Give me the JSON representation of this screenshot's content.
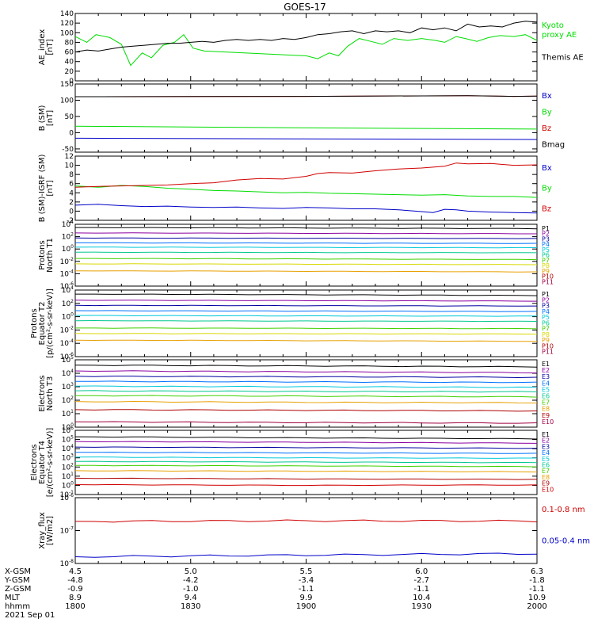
{
  "title": "GOES-17",
  "colors": {
    "black": "#000000",
    "green": "#00dd00",
    "blue": "#0000c8",
    "red": "#d00000",
    "purple": "#8a00a0",
    "navy": "#0000a0",
    "sky": "#0070ff",
    "cyan": "#00c8d8",
    "teal": "#00c890",
    "lime": "#40d000",
    "yellow": "#d8d800",
    "orange": "#e8a000",
    "darkred": "#b00000",
    "wine": "#a00040"
  },
  "chart_data": [
    {
      "type": "line",
      "panel": "ae",
      "ylabel": "AE_index\n[nT]",
      "ylim": [
        0,
        140
      ],
      "yticks": [
        "0",
        "20",
        "40",
        "60",
        "80",
        "100",
        "120",
        "140"
      ],
      "series": [
        {
          "name": "Kyoto\nproxy AE",
          "color": "green",
          "x": [
            1800,
            1805,
            1809,
            1815,
            1820,
            1824,
            1829,
            1833,
            1838,
            1843,
            1847,
            1851,
            1856,
            1900,
            1905,
            1910,
            1914,
            1918,
            1923,
            1928,
            1933,
            1938,
            1944,
            1950,
            1956,
            1960,
            1965,
            1969,
            1974,
            1979,
            1984,
            1990,
            1995,
            2000
          ],
          "values": [
            92,
            80,
            96,
            90,
            76,
            32,
            58,
            48,
            74,
            80,
            96,
            68,
            62,
            52,
            46,
            58,
            52,
            72,
            88,
            82,
            76,
            88,
            84,
            88,
            84,
            80,
            92,
            88,
            82,
            90,
            94,
            92,
            96,
            84
          ]
        },
        {
          "name": "Themis AE",
          "color": "black",
          "x": [
            1800,
            1805,
            1810,
            1815,
            1820,
            1825,
            1830,
            1835,
            1840,
            1845,
            1850,
            1855,
            1860,
            1865,
            1870,
            1875,
            1880,
            1885,
            1890,
            1895,
            1900,
            1905,
            1910,
            1915,
            1920,
            1925,
            1930,
            1935,
            1940,
            1945,
            1950,
            1955,
            1960,
            1965,
            1970,
            1975,
            1980,
            1985,
            1990,
            1995,
            2000
          ],
          "values": [
            60,
            64,
            62,
            66,
            70,
            72,
            74,
            76,
            78,
            78,
            80,
            82,
            80,
            84,
            86,
            84,
            86,
            84,
            88,
            86,
            90,
            96,
            98,
            102,
            104,
            98,
            104,
            102,
            104,
            100,
            110,
            106,
            110,
            104,
            118,
            112,
            114,
            112,
            120,
            124,
            122
          ]
        }
      ]
    },
    {
      "type": "line",
      "panel": "bsm",
      "ylabel": "B (SM)\n[nT]",
      "ylim": [
        -60,
        150
      ],
      "yticks": [
        "-50",
        "0",
        "50",
        "100",
        "150"
      ],
      "series": [
        {
          "name": "Bx",
          "color": "blue",
          "x": [
            1800,
            1900,
            2000
          ],
          "values": [
            -17,
            -19,
            -21
          ]
        },
        {
          "name": "By",
          "color": "green",
          "x": [
            1800,
            1900,
            2000
          ],
          "values": [
            20,
            15,
            11
          ]
        },
        {
          "name": "Bz",
          "color": "red",
          "x": [
            1800,
            1900,
            1970,
            1990,
            2000
          ],
          "values": [
            111,
            112,
            114,
            112,
            113
          ]
        },
        {
          "name": "Bmag",
          "color": "black",
          "x": [
            1800,
            1900,
            1970,
            1990,
            2000
          ],
          "values": [
            111,
            112,
            114,
            112,
            113
          ]
        }
      ]
    },
    {
      "type": "line",
      "panel": "bigrf",
      "ylabel": "B (SM)-IGRF (SM)\n[nT]",
      "ylim": [
        -2,
        12
      ],
      "yticks": [
        "-2",
        "0",
        "2",
        "4",
        "6",
        "8",
        "10",
        "12"
      ],
      "series": [
        {
          "name": "Bx",
          "color": "blue",
          "x": [
            1800,
            1810,
            1820,
            1830,
            1840,
            1850,
            1860,
            1870,
            1880,
            1890,
            1900,
            1910,
            1920,
            1930,
            1940,
            1950,
            1955,
            1960,
            1965,
            1970,
            1980,
            1990,
            2000
          ],
          "values": [
            1.3,
            1.5,
            1.2,
            1.0,
            1.1,
            0.9,
            0.8,
            0.9,
            0.7,
            0.6,
            0.8,
            0.7,
            0.5,
            0.5,
            0.3,
            -0.1,
            -0.3,
            0.4,
            0.3,
            0.0,
            -0.2,
            -0.3,
            -0.4
          ]
        },
        {
          "name": "By",
          "color": "green",
          "x": [
            1800,
            1810,
            1820,
            1830,
            1840,
            1850,
            1860,
            1870,
            1880,
            1890,
            1900,
            1910,
            1920,
            1930,
            1940,
            1950,
            1960,
            1970,
            1980,
            1990,
            2000
          ],
          "values": [
            5.5,
            5.2,
            5.6,
            5.4,
            5.0,
            4.8,
            4.5,
            4.4,
            4.2,
            4.0,
            4.1,
            3.9,
            3.8,
            3.7,
            3.6,
            3.5,
            3.6,
            3.3,
            3.2,
            3.2,
            3.0
          ]
        },
        {
          "name": "Bz",
          "color": "red",
          "x": [
            1800,
            1810,
            1820,
            1830,
            1840,
            1850,
            1860,
            1870,
            1880,
            1890,
            1900,
            1905,
            1910,
            1920,
            1930,
            1940,
            1950,
            1960,
            1965,
            1970,
            1980,
            1990,
            2000
          ],
          "values": [
            5.2,
            5.4,
            5.5,
            5.6,
            5.7,
            6.0,
            6.2,
            6.8,
            7.1,
            7.0,
            7.6,
            8.2,
            8.4,
            8.3,
            8.8,
            9.2,
            9.4,
            9.8,
            10.5,
            10.3,
            10.4,
            10.0,
            10.1
          ]
        }
      ]
    },
    {
      "type": "line",
      "panel": "p-north",
      "ylabel": "Protons\nNorth T1",
      "yscale": "log",
      "ylim": [
        1e-06,
        10000.0
      ],
      "yticks": [
        "10^-6",
        "10^-4",
        "10^-2",
        "10^0",
        "10^2",
        "10^4"
      ],
      "series": [
        {
          "name": "P1",
          "color": "black",
          "values": [
            3000,
            2500,
            2000
          ]
        },
        {
          "name": "P2",
          "color": "purple",
          "values": [
            400,
            350,
            300
          ]
        },
        {
          "name": "P3",
          "color": "navy",
          "values": [
            60,
            55,
            50
          ]
        },
        {
          "name": "P4",
          "color": "sky",
          "values": [
            10,
            9,
            8
          ]
        },
        {
          "name": "P5",
          "color": "cyan",
          "values": [
            2,
            1.8,
            1.6
          ]
        },
        {
          "name": "P6",
          "color": "teal",
          "values": [
            0.3,
            0.27,
            0.25
          ]
        },
        {
          "name": "P7",
          "color": "lime",
          "values": [
            0.03,
            0.025,
            0.02
          ]
        },
        {
          "name": "P8",
          "color": "yellow",
          "values": [
            0.004,
            0.0035,
            0.003
          ]
        },
        {
          "name": "P9",
          "color": "orange",
          "values": [
            0.0003,
            0.00025,
            0.0002
          ]
        },
        {
          "name": "P10",
          "color": "darkred",
          "values": []
        },
        {
          "name": "P11",
          "color": "wine",
          "values": []
        }
      ]
    },
    {
      "type": "line",
      "panel": "p-equator",
      "ylabel": "Protons\nEquator T2\n[p/(cm²-s-sr-keV)]",
      "yscale": "log",
      "ylim": [
        1e-06,
        10000.0
      ],
      "yticks": [
        "10^-6",
        "10^-4",
        "10^-2",
        "10^0",
        "10^2",
        "10^4"
      ],
      "series": [
        {
          "name": "P1",
          "color": "black",
          "values": [
            2500,
            2000,
            1500
          ]
        },
        {
          "name": "P2",
          "color": "purple",
          "values": [
            300,
            260,
            220
          ]
        },
        {
          "name": "P3",
          "color": "navy",
          "values": [
            50,
            45,
            40
          ]
        },
        {
          "name": "P4",
          "color": "sky",
          "values": [
            8,
            7,
            6
          ]
        },
        {
          "name": "P5",
          "color": "cyan",
          "values": [
            1.5,
            1.3,
            1.2
          ]
        },
        {
          "name": "P6",
          "color": "teal",
          "values": [
            0.25,
            0.22,
            0.2
          ]
        },
        {
          "name": "P7",
          "color": "lime",
          "values": [
            0.02,
            0.018,
            0.016
          ]
        },
        {
          "name": "P8",
          "color": "yellow",
          "values": [
            0.003,
            0.0027,
            0.0025
          ]
        },
        {
          "name": "P9",
          "color": "orange",
          "values": [
            0.0003,
            0.00025,
            0.0002
          ]
        },
        {
          "name": "P10",
          "color": "darkred",
          "values": []
        },
        {
          "name": "P11",
          "color": "wine",
          "values": []
        }
      ]
    },
    {
      "type": "line",
      "panel": "e-north",
      "ylabel": "Electrons\nNorth T3",
      "yscale": "log",
      "ylim": [
        1,
        100000.0
      ],
      "yticks": [
        "10^0",
        "10^1",
        "10^2",
        "10^3",
        "10^4",
        "10^5"
      ],
      "series": [
        {
          "name": "E1",
          "color": "black",
          "values": [
            40000,
            35000,
            30000
          ]
        },
        {
          "name": "E2",
          "color": "purple",
          "values": [
            15000,
            13000,
            11000
          ]
        },
        {
          "name": "E3",
          "color": "navy",
          "values": [
            6000,
            5500,
            5000
          ]
        },
        {
          "name": "E4",
          "color": "sky",
          "values": [
            2500,
            2300,
            2100
          ]
        },
        {
          "name": "E5",
          "color": "cyan",
          "values": [
            1100,
            1000,
            900
          ]
        },
        {
          "name": "E6",
          "color": "teal",
          "values": [
            500,
            450,
            420
          ]
        },
        {
          "name": "E7",
          "color": "lime",
          "values": [
            220,
            200,
            180
          ]
        },
        {
          "name": "E8",
          "color": "orange",
          "values": [
            80,
            70,
            65
          ]
        },
        {
          "name": "E9",
          "color": "darkred",
          "values": [
            20,
            18,
            16
          ]
        },
        {
          "name": "E10",
          "color": "wine",
          "values": [
            2.5,
            2.2,
            2.0
          ]
        }
      ]
    },
    {
      "type": "line",
      "panel": "e-equator",
      "ylabel": "Electrons\nEquator T4\n[e/(cm²-s-sr-keV)]",
      "yscale": "log",
      "ylim": [
        0.1,
        1000000.0
      ],
      "yticks": [
        "10^-1",
        "10^0",
        "10^1",
        "10^2",
        "10^3",
        "10^4",
        "10^5",
        "10^6"
      ],
      "series": [
        {
          "name": "E1",
          "color": "black",
          "values": [
            200000,
            150000,
            120000
          ]
        },
        {
          "name": "E2",
          "color": "purple",
          "values": [
            60000,
            50000,
            40000
          ]
        },
        {
          "name": "E3",
          "color": "navy",
          "values": [
            15000,
            13000,
            11000
          ]
        },
        {
          "name": "E4",
          "color": "sky",
          "values": [
            4000,
            3500,
            3000
          ]
        },
        {
          "name": "E5",
          "color": "cyan",
          "values": [
            1200,
            1000,
            900
          ]
        },
        {
          "name": "E6",
          "color": "teal",
          "values": [
            400,
            350,
            300
          ]
        },
        {
          "name": "E7",
          "color": "lime",
          "values": [
            150,
            130,
            110
          ]
        },
        {
          "name": "E8",
          "color": "orange",
          "values": [
            40,
            35,
            30
          ]
        },
        {
          "name": "E9",
          "color": "darkred",
          "values": [
            6,
            5,
            4.5
          ]
        },
        {
          "name": "E10",
          "color": "red",
          "values": [
            1.2,
            1.0,
            1.1
          ]
        }
      ]
    },
    {
      "type": "line",
      "panel": "xray",
      "ylabel": "Xray_flux\n[W/m2]",
      "yscale": "log",
      "ylim": [
        1e-08,
        1e-06
      ],
      "yticks": [
        "10^-8",
        "10^-7",
        "10^-6"
      ],
      "series": [
        {
          "name": "0.1-0.8 nm",
          "color": "red",
          "values": [
            1.9e-07,
            2e-07,
            1.95e-07
          ]
        },
        {
          "name": "0.05-0.4 nm",
          "color": "blue",
          "values": [
            1.6e-08,
            1.8e-08,
            2e-08
          ]
        }
      ]
    }
  ],
  "xaxis": {
    "rows": [
      {
        "label": "X-GSM",
        "values": [
          "4.5",
          "5.0",
          "5.5",
          "6.0",
          "6.3"
        ]
      },
      {
        "label": "Y-GSM",
        "values": [
          "-4.8",
          "-4.2",
          "-3.4",
          "-2.7",
          "-1.8"
        ]
      },
      {
        "label": "Z-GSM",
        "values": [
          "-0.9",
          "-1.0",
          "-1.1",
          "-1.1",
          "-1.1"
        ]
      },
      {
        "label": "MLT",
        "values": [
          "8.9",
          "9.4",
          "9.9",
          "10.4",
          "10.9"
        ]
      },
      {
        "label": "hhmm",
        "values": [
          "1800",
          "1830",
          "1900",
          "1930",
          "2000"
        ]
      }
    ],
    "date": "2021 Sep 01"
  }
}
